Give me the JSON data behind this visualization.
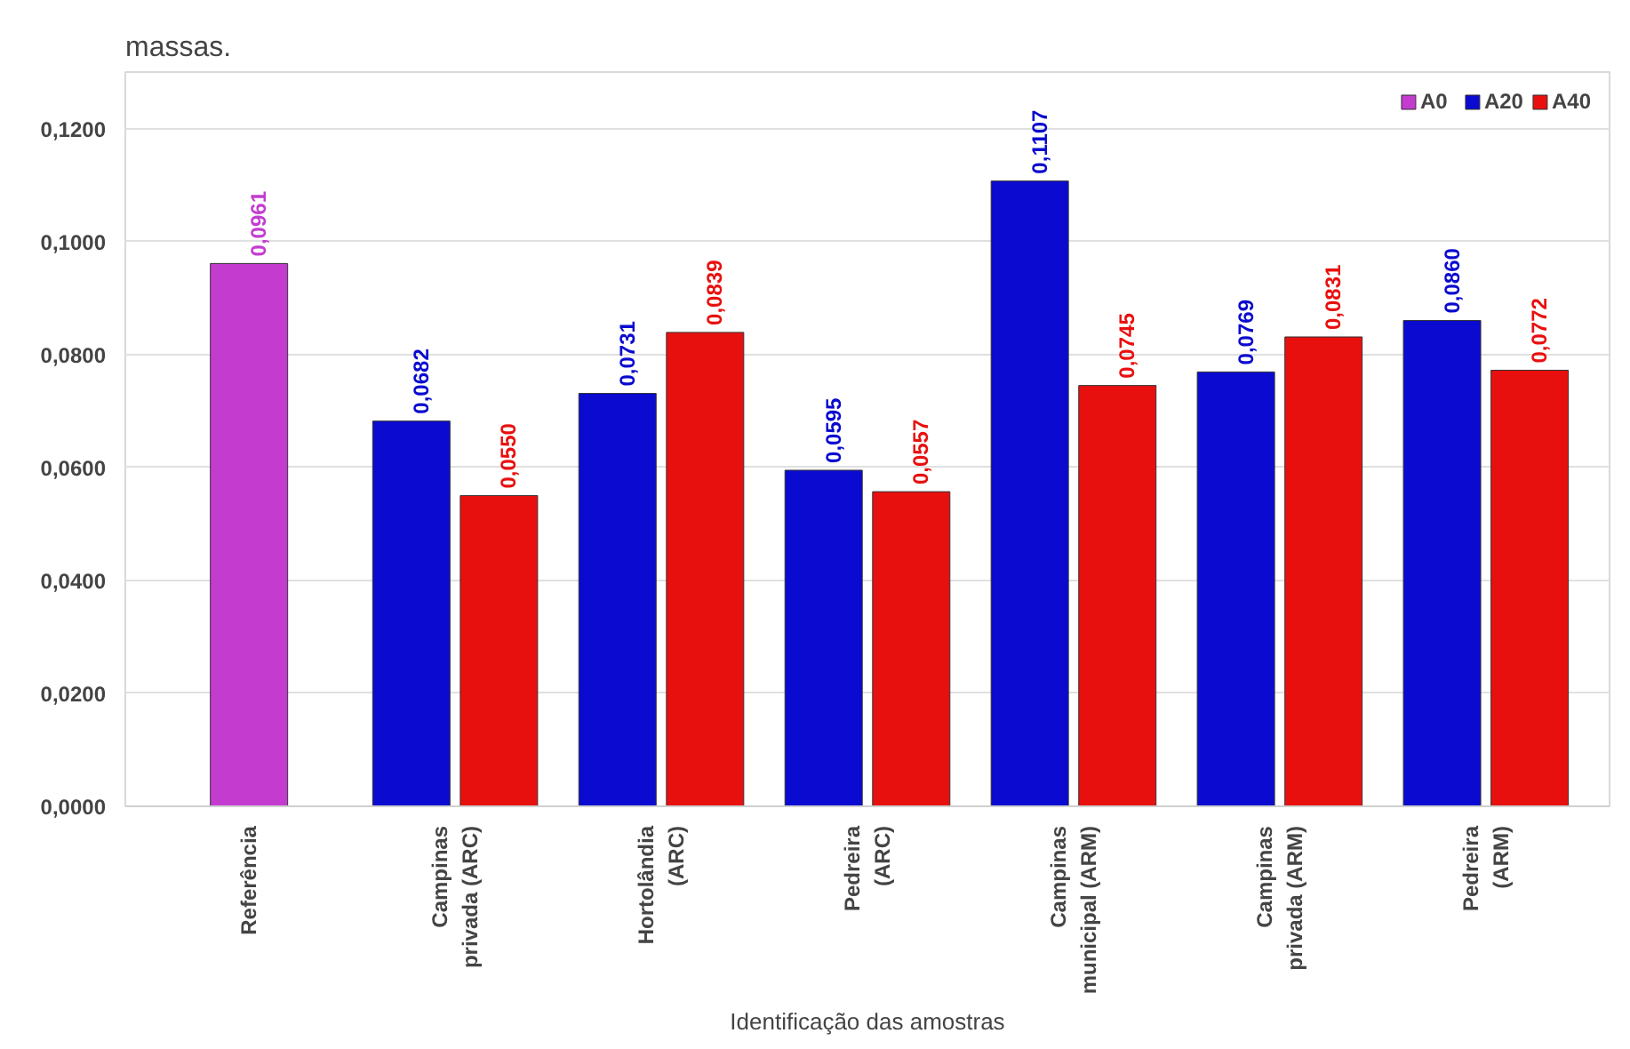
{
  "chart_data": {
    "type": "bar",
    "xlabel": "Identificação das amostras",
    "categories": [
      "Referência",
      "Campinas\nprivada (ARC)",
      "Hortolândia\n(ARC)",
      "Pedreira\n(ARC)",
      "Campinas\nmunicipal (ARM)",
      "Campinas\nprivada (ARM)",
      "Pedreira\n(ARM)"
    ],
    "series": [
      {
        "name": "A0",
        "color": "#c33ccf",
        "values": [
          0.0961,
          null,
          null,
          null,
          null,
          null,
          null
        ],
        "value_labels": [
          "0,0961",
          null,
          null,
          null,
          null,
          null,
          null
        ]
      },
      {
        "name": "A20",
        "color": "#0a0ad0",
        "values": [
          null,
          0.0682,
          0.0731,
          0.0595,
          0.1107,
          0.0769,
          0.086
        ],
        "value_labels": [
          null,
          "0,0682",
          "0,0731",
          "0,0595",
          "0,1107",
          "0,0769",
          "0,0860"
        ]
      },
      {
        "name": "A40",
        "color": "#e8100f",
        "values": [
          null,
          0.055,
          0.0839,
          0.0557,
          0.0745,
          0.0831,
          0.0772
        ],
        "value_labels": [
          null,
          "0,0550",
          "0,0839",
          "0,0557",
          "0,0745",
          "0,0831",
          "0,0772"
        ]
      }
    ],
    "ylim": [
      0,
      0.13
    ],
    "yticks": [
      {
        "value": 0,
        "label": "0,0000"
      },
      {
        "value": 0.02,
        "label": "0,0200"
      },
      {
        "value": 0.04,
        "label": "0,0400"
      },
      {
        "value": 0.06,
        "label": "0,0600"
      },
      {
        "value": 0.08,
        "label": "0,0800"
      },
      {
        "value": 0.1,
        "label": "0,1000"
      },
      {
        "value": 0.12,
        "label": "0,1200"
      }
    ],
    "grid": "y",
    "legend": "top right",
    "annotations": [
      "massas."
    ]
  }
}
